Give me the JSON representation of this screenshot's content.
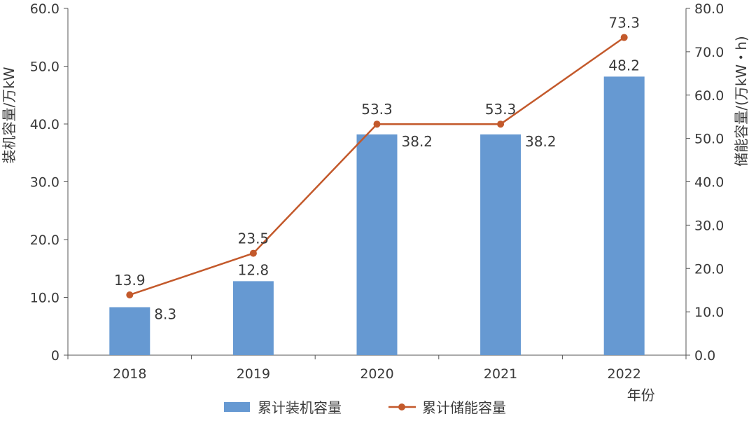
{
  "chart_data": {
    "type": "bar+line",
    "categories": [
      "2018",
      "2019",
      "2020",
      "2021",
      "2022"
    ],
    "xlabel": "年份",
    "ylabel_left": "装机容量/万kW",
    "ylabel_right": "储能容量/(万kW・h)",
    "ylim_left": [
      0,
      60
    ],
    "ylim_right": [
      0,
      80
    ],
    "yticks_left": [
      "0",
      "10.0",
      "20.0",
      "30.0",
      "40.0",
      "50.0",
      "60.0"
    ],
    "yticks_right": [
      "0.0",
      "10.0",
      "20.0",
      "30.0",
      "40.0",
      "50.0",
      "60.0",
      "70.0",
      "80.0"
    ],
    "grid": false,
    "legend_position": "bottom",
    "series": [
      {
        "name": "累计装机容量",
        "type": "bar",
        "axis": "left",
        "color": "#6699d2",
        "values": [
          8.3,
          12.8,
          38.2,
          38.2,
          48.2
        ],
        "labels": [
          "8.3",
          "12.8",
          "38.2",
          "38.2",
          "48.2"
        ]
      },
      {
        "name": "累计储能容量",
        "type": "line",
        "axis": "right",
        "color": "#c3592b",
        "values": [
          13.9,
          23.5,
          53.3,
          53.3,
          73.3
        ],
        "labels": [
          "13.9",
          "23.5",
          "53.3",
          "53.3",
          "73.3"
        ]
      }
    ]
  }
}
